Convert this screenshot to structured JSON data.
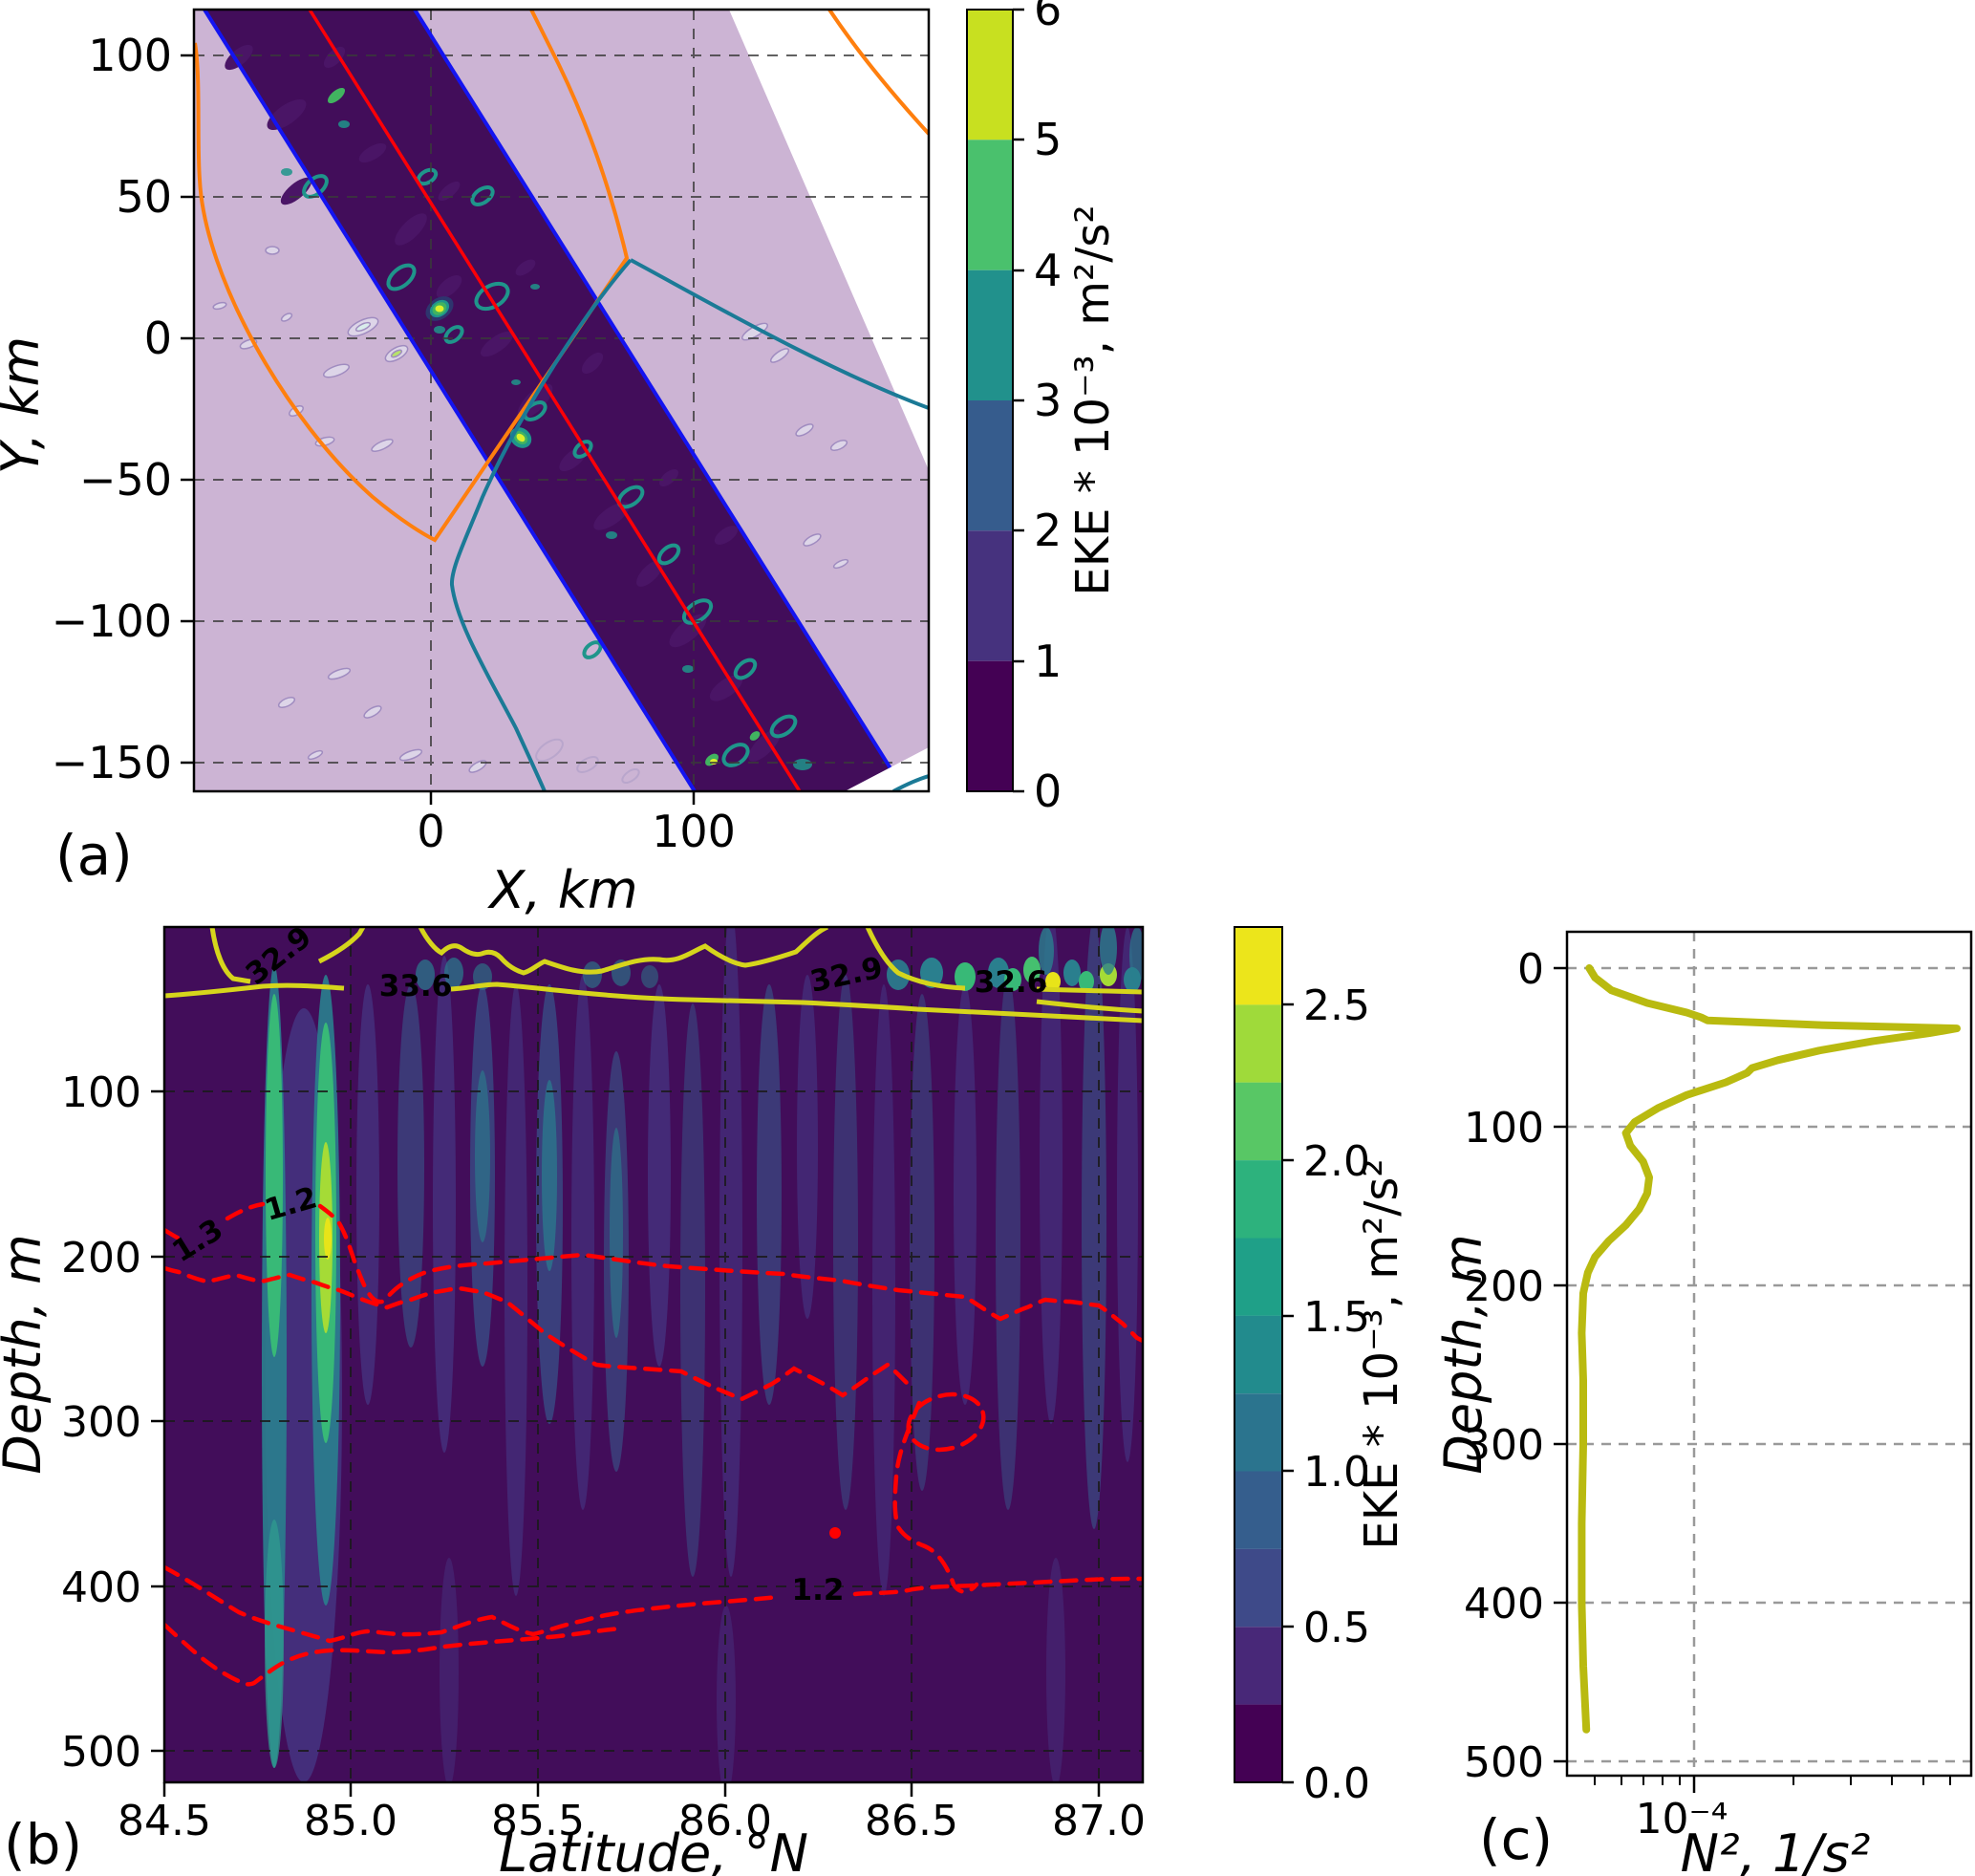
{
  "figure": {
    "background": "#ffffff",
    "description": "Three-panel oceanographic EKE figure: (a) plan-view map of EKE with section swath, (b) latitude-depth EKE section with salinity and velocity contours, (c) vertical N-squared profile."
  },
  "colors": {
    "domain_fill": "#ccb4d4",
    "swath_fill": "#420d5a",
    "swath_edge_blue": "#1414f0",
    "section_line_red": "#fb0007",
    "contour_orange": "#ff7f0e",
    "contour_teal": "#1b7a96",
    "contour_yellow": "#d6d51c",
    "contour_red_dashed": "#ff0000",
    "n2_line_olive": "#b9ba10",
    "grid_dark": "#3a3a3a",
    "grid_gray": "#888888"
  },
  "panel_a": {
    "label": "(a)",
    "xlabel": "X, km",
    "ylabel": "Y, km",
    "xtick_labels": [
      "0",
      "100"
    ],
    "ytick_labels": [
      "100",
      "50",
      "0",
      "−50",
      "−100",
      "−150"
    ],
    "colorbar": {
      "label": "EKE * 10⁻³, m²/s²",
      "tick_labels": [
        "0",
        "1",
        "2",
        "3",
        "4",
        "5",
        "6"
      ],
      "segment_colors_bottom_to_top": [
        "#440154",
        "#46327e",
        "#365c8d",
        "#21918c",
        "#4ac16d",
        "#c8e020"
      ]
    }
  },
  "panel_b": {
    "label": "(b)",
    "xlabel": "Latitude, °N",
    "ylabel": "Depth, m",
    "xtick_labels": [
      "84.5",
      "85.0",
      "85.5",
      "86.0",
      "86.5",
      "87.0"
    ],
    "ytick_labels": [
      "100",
      "200",
      "300",
      "400",
      "500"
    ],
    "colorbar": {
      "label": "EKE * 10⁻³, m²/s²",
      "tick_labels": [
        "0.0",
        "0.5",
        "1.0",
        "1.5",
        "2.0",
        "2.5"
      ],
      "segment_colors_bottom_to_top": [
        "#440154",
        "#482878",
        "#3e4a89",
        "#355e8d",
        "#2b748e",
        "#228b8d",
        "#1fa088",
        "#2db27d",
        "#58c765",
        "#9fda3a",
        "#ece51b"
      ]
    },
    "contour_labels": {
      "salinity": [
        "32.9",
        "33.6",
        "32.9",
        "32.6"
      ],
      "red": [
        "1.3",
        "1.2",
        "1.2"
      ]
    }
  },
  "panel_c": {
    "label": "(c)",
    "xlabel": "N², 1/s²",
    "ylabel": "Depth, m",
    "xtick_labels": [
      "10⁻⁴"
    ],
    "ytick_labels": [
      "0",
      "100",
      "200",
      "300",
      "400",
      "500"
    ]
  },
  "chart_data": [
    {
      "type": "heatmap",
      "panel": "a",
      "xlabel": "X, km",
      "ylabel": "Y, km",
      "xlim": [
        -90,
        190
      ],
      "ylim": [
        -160,
        116
      ],
      "xticks": [
        0,
        100
      ],
      "yticks": [
        100,
        50,
        0,
        -50,
        -100,
        -150
      ],
      "grid": true,
      "colorbar": {
        "label": "EKE * 10⁻³, m²/s²",
        "range": [
          0,
          6
        ],
        "ticks": [
          0,
          1,
          2,
          3,
          4,
          5,
          6
        ]
      },
      "annotations": [
        "pale lavender polygon = model domain, white corners outside domain",
        "dark diagonal swath bounded by two blue lines = EKE field corridor",
        "red straight line = section track through swath",
        "orange contour and teal contour = front/boundary positions",
        "bright viridis eddy spots inside swath near (0,10) km and (35,-35) km with EKE up to ~6e-3 m²/s²"
      ]
    },
    {
      "type": "heatmap",
      "panel": "b",
      "xlabel": "Latitude, °N",
      "ylabel": "Depth, m",
      "xlim": [
        84.5,
        87.12
      ],
      "ylim": [
        520,
        0
      ],
      "xticks": [
        84.5,
        85.0,
        85.5,
        86.0,
        86.5,
        87.0
      ],
      "yticks": [
        100,
        200,
        300,
        400,
        500
      ],
      "grid": true,
      "colorbar": {
        "label": "EKE * 10⁻³, m²/s²",
        "range": [
          0,
          2.75
        ],
        "ticks": [
          0.0,
          0.5,
          1.0,
          1.5,
          2.0,
          2.5
        ]
      },
      "contours": {
        "salinity_yellow_solid": {
          "labels": [
            32.9,
            33.6,
            32.9,
            32.6
          ],
          "depth_range_m": [
            0,
            60
          ]
        },
        "red_dashed": {
          "labels": [
            1.3,
            1.2,
            1.2
          ],
          "depth_range_m": [
            160,
            470
          ]
        }
      },
      "features": [
        "strong EKE columns near 84.78-84.95 N from ~40 m to ~500 m, core ~2.5e-3 m2/s2 near 170-230 m",
        "surface-intensified EKE east of 86.2 N above ~40 m reaching colorbar maximum",
        "faint vertical EKE streaks across the whole section"
      ]
    },
    {
      "type": "line",
      "panel": "c",
      "xlabel": "N², 1/s²",
      "ylabel": "Depth, m",
      "xscale": "log",
      "xticks_labeled": [
        0.0001
      ],
      "ylim": [
        520,
        -25
      ],
      "legend": "none",
      "series": [
        {
          "name": "N² profile",
          "color": "#b9ba10",
          "depth_m": [
            0,
            6,
            14,
            22,
            28,
            31,
            33,
            36,
            38,
            41,
            46,
            52,
            58,
            63,
            66,
            72,
            80,
            88,
            97,
            104,
            112,
            122,
            132,
            142,
            152,
            162,
            172,
            182,
            192,
            205,
            230,
            260,
            300,
            350,
            400,
            440,
            480
          ],
          "N2_1_s2": [
            4.8e-05,
            5e-05,
            5.6e-05,
            7.2e-05,
            9.5e-05,
            0.000105,
            0.00011,
            0.00025,
            0.00063,
            0.00052,
            0.00035,
            0.00024,
            0.00018,
            0.00015,
            0.000145,
            0.000125,
            9.5e-05,
            7.8e-05,
            6.6e-05,
            6.2e-05,
            6.4e-05,
            7e-05,
            7.3e-05,
            7.2e-05,
            6.8e-05,
            6.2e-05,
            5.5e-05,
            5e-05,
            4.75e-05,
            4.6e-05,
            4.55e-05,
            4.6e-05,
            4.6e-05,
            4.55e-05,
            4.55e-05,
            4.6e-05,
            4.7e-05
          ],
          "peak": {
            "depth_m": 38,
            "N2_1_s2": 0.00063
          }
        }
      ]
    }
  ]
}
